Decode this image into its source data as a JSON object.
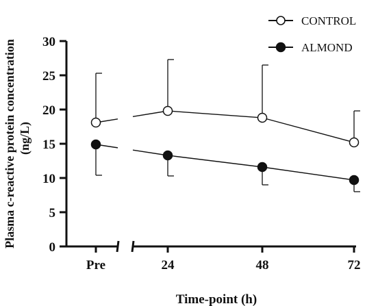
{
  "chart_data": {
    "type": "line",
    "title": "",
    "xlabel": "Time-point (h)",
    "ylabel_line1": "Plasma c-reactive protein concentration",
    "ylabel_line2": "(ng/L)",
    "categories": [
      "Pre",
      "24",
      "48",
      "72"
    ],
    "ylim": [
      0,
      30
    ],
    "yticks": [
      "0",
      "5",
      "10",
      "15",
      "20",
      "25",
      "30"
    ],
    "axis_break": "between Pre and 24",
    "grid": false,
    "legend_position": "top-right",
    "series": [
      {
        "name": "CONTROL",
        "marker": "open-circle",
        "values": [
          18.1,
          19.8,
          18.8,
          15.2
        ],
        "error_upper": [
          25.3,
          27.3,
          26.5,
          19.8
        ],
        "error_direction": "up"
      },
      {
        "name": "ALMOND",
        "marker": "filled-circle",
        "values": [
          14.9,
          13.3,
          11.6,
          9.7
        ],
        "error_lower": [
          10.4,
          10.3,
          9.0,
          8.0
        ],
        "error_direction": "down"
      }
    ]
  }
}
